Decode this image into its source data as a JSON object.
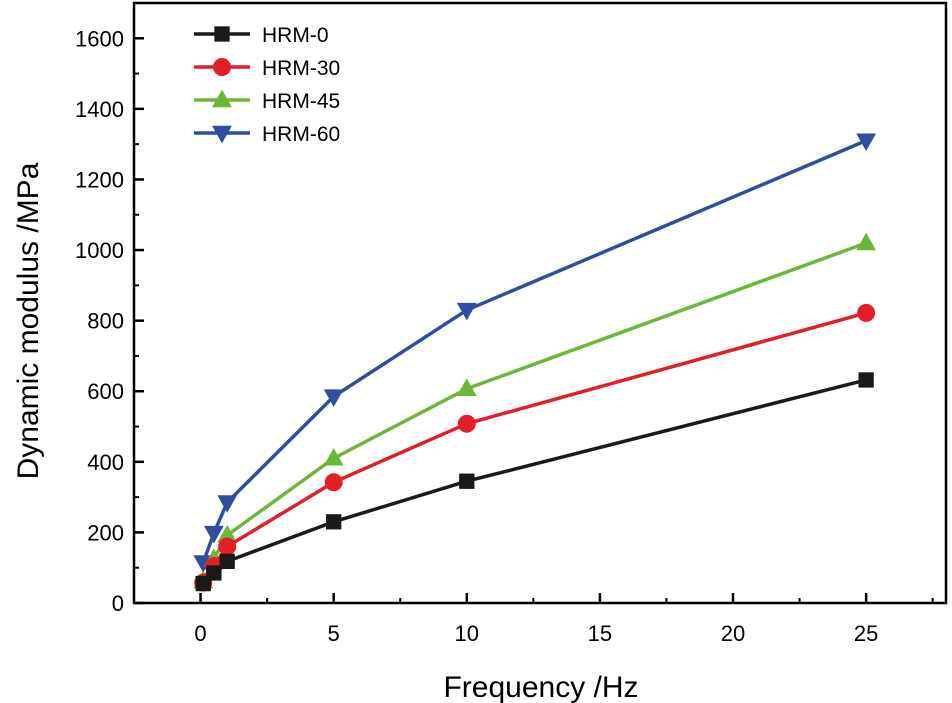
{
  "chart_data": {
    "type": "line",
    "title": "",
    "xlabel": "Frequency /Hz",
    "ylabel": "Dynamic modulus /MPa",
    "xlim": [
      -2.5,
      28
    ],
    "ylim": [
      0,
      1700
    ],
    "xticks": [
      0,
      5,
      10,
      15,
      20,
      25
    ],
    "yticks": [
      0,
      200,
      400,
      600,
      800,
      1000,
      1200,
      1400,
      1600
    ],
    "x": [
      0.1,
      0.5,
      1,
      5,
      10,
      25
    ],
    "legend_position": "top-left",
    "grid": false,
    "series": [
      {
        "name": "HRM-0",
        "color": "#1a1a1a",
        "marker": "square",
        "values": [
          55,
          85,
          118,
          230,
          345,
          632
        ]
      },
      {
        "name": "HRM-30",
        "color": "#e41e26",
        "marker": "circle",
        "values": [
          58,
          105,
          160,
          342,
          508,
          822
        ]
      },
      {
        "name": "HRM-45",
        "color": "#6ab83a",
        "marker": "triangle-up",
        "values": [
          62,
          125,
          192,
          410,
          607,
          1020
        ]
      },
      {
        "name": "HRM-60",
        "color": "#2e4fa0",
        "marker": "triangle-down",
        "values": [
          115,
          198,
          285,
          585,
          830,
          1310
        ]
      }
    ]
  }
}
